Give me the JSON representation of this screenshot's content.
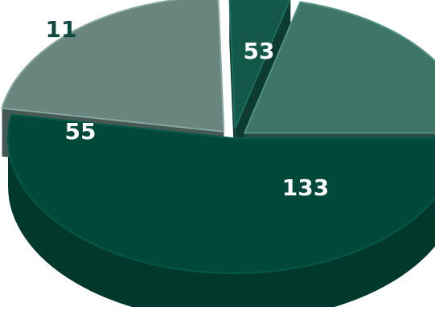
{
  "chart_data": {
    "type": "pie",
    "title": "",
    "style": "3d-exploded",
    "slices": [
      {
        "label": "133",
        "value": 133,
        "color": "#004839"
      },
      {
        "label": "55",
        "value": 55,
        "color": "#6a857e"
      },
      {
        "label": "11",
        "value": 11,
        "color": "#14584a"
      },
      {
        "label": "53",
        "value": 53,
        "color": "#3f7566"
      }
    ],
    "colors": {
      "label_light": "#ffffff",
      "label_dark": "#0d4b3e"
    }
  }
}
